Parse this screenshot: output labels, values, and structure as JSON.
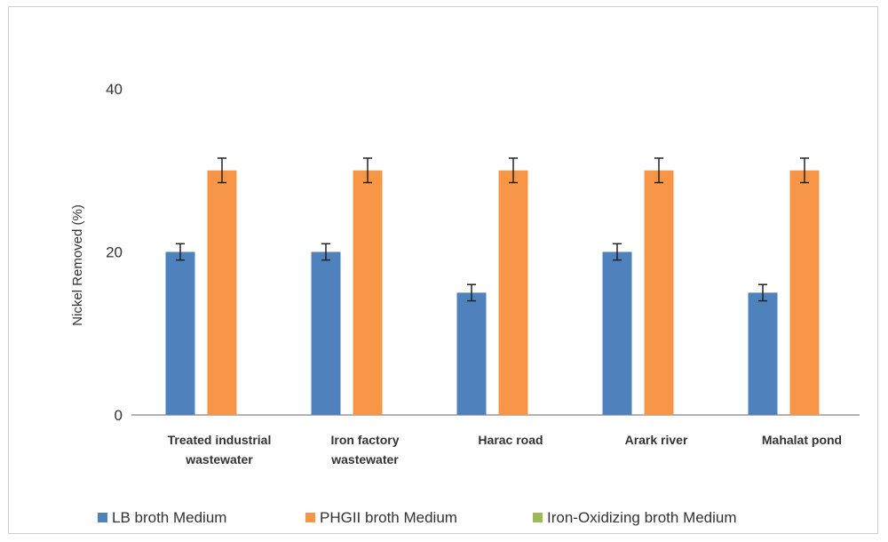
{
  "chart_data": {
    "type": "bar",
    "title": "",
    "xlabel": "",
    "ylabel": "Nickel Removed (%)",
    "ylim": [
      0,
      40
    ],
    "yticks": [
      0,
      20,
      40
    ],
    "grid": false,
    "legend_position": "bottom",
    "categories": [
      [
        "Treated industrial",
        "wastewater"
      ],
      [
        "Iron factory",
        "wastewater"
      ],
      [
        "Harac road"
      ],
      [
        "Arark river"
      ],
      [
        "Mahalat pond"
      ]
    ],
    "series": [
      {
        "name": "LB broth Medium",
        "color": "#4f81bd",
        "values": [
          20,
          20,
          15,
          20,
          15
        ],
        "errors": [
          1,
          1,
          1,
          1,
          1
        ]
      },
      {
        "name": "PHGII broth Medium",
        "color": "#f79646",
        "values": [
          30,
          30,
          30,
          30,
          30
        ],
        "errors": [
          1.5,
          1.5,
          1.5,
          1.5,
          1.5
        ]
      },
      {
        "name": "Iron-Oxidizing broth Medium",
        "color": "#9bbb59",
        "values": [
          0,
          0,
          0,
          0,
          0
        ],
        "errors": [
          0,
          0,
          0,
          0,
          0
        ]
      }
    ]
  }
}
